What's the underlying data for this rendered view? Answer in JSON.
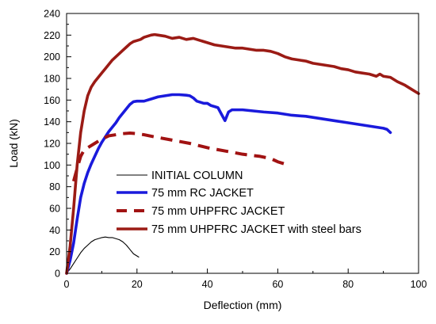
{
  "chart_data": {
    "type": "line",
    "xlabel": "Deflection (mm)",
    "ylabel": "Load (kN)",
    "xlim": [
      0,
      100
    ],
    "ylim": [
      0,
      240
    ],
    "xticks": [
      0,
      20,
      40,
      60,
      80,
      100
    ],
    "yticks": [
      0,
      20,
      40,
      60,
      80,
      100,
      120,
      140,
      160,
      180,
      200,
      220,
      240
    ],
    "grid": false,
    "legend_position": "bottom-left inside",
    "series": [
      {
        "name": "INITIAL COLUMN",
        "color": "#000000",
        "style": "solid-thin",
        "points": [
          [
            0,
            0
          ],
          [
            1,
            4
          ],
          [
            2,
            9
          ],
          [
            3,
            14
          ],
          [
            4,
            19
          ],
          [
            5,
            23
          ],
          [
            6,
            26
          ],
          [
            7,
            29
          ],
          [
            8,
            31
          ],
          [
            9,
            32
          ],
          [
            10,
            33
          ],
          [
            11,
            33.5
          ],
          [
            12,
            33
          ],
          [
            13,
            33
          ],
          [
            14,
            32
          ],
          [
            15,
            31
          ],
          [
            16,
            29
          ],
          [
            17,
            26
          ],
          [
            18,
            22
          ],
          [
            19,
            18
          ],
          [
            20,
            16
          ],
          [
            20.5,
            15
          ]
        ]
      },
      {
        "name": "75 mm RC JACKET",
        "color": "#1a1adc",
        "style": "solid-thick",
        "points": [
          [
            0,
            0
          ],
          [
            1,
            12
          ],
          [
            2,
            28
          ],
          [
            3,
            50
          ],
          [
            4,
            70
          ],
          [
            5,
            83
          ],
          [
            6,
            93
          ],
          [
            7,
            101
          ],
          [
            8,
            108
          ],
          [
            9,
            115
          ],
          [
            10,
            121
          ],
          [
            11,
            126
          ],
          [
            12,
            131
          ],
          [
            13,
            135
          ],
          [
            14,
            139
          ],
          [
            15,
            144
          ],
          [
            16,
            148
          ],
          [
            17,
            152
          ],
          [
            18,
            156
          ],
          [
            19,
            158.5
          ],
          [
            20,
            159
          ],
          [
            22,
            159
          ],
          [
            24,
            161
          ],
          [
            26,
            163
          ],
          [
            28,
            164
          ],
          [
            30,
            165
          ],
          [
            32,
            165
          ],
          [
            34,
            164.5
          ],
          [
            35,
            164
          ],
          [
            36,
            162
          ],
          [
            37,
            159
          ],
          [
            38,
            158
          ],
          [
            39,
            157
          ],
          [
            40,
            157
          ],
          [
            41,
            155
          ],
          [
            42,
            154
          ],
          [
            43,
            153
          ],
          [
            44,
            147
          ],
          [
            45,
            141
          ],
          [
            46,
            149
          ],
          [
            47,
            151
          ],
          [
            50,
            151
          ],
          [
            53,
            150
          ],
          [
            56,
            149
          ],
          [
            60,
            148
          ],
          [
            64,
            146
          ],
          [
            68,
            145
          ],
          [
            72,
            143
          ],
          [
            76,
            141
          ],
          [
            80,
            139
          ],
          [
            84,
            137
          ],
          [
            88,
            135
          ],
          [
            90,
            134
          ],
          [
            91,
            133
          ],
          [
            92,
            130
          ]
        ]
      },
      {
        "name": "75 mm UHPFRC JACKET",
        "color": "#a11212",
        "style": "dashed-thick",
        "points": [
          [
            2,
            85
          ],
          [
            3,
            97
          ],
          [
            4,
            108
          ],
          [
            5,
            114
          ],
          [
            6,
            116
          ],
          [
            8,
            120
          ],
          [
            10,
            124
          ],
          [
            12,
            127
          ],
          [
            14,
            128
          ],
          [
            16,
            129
          ],
          [
            18,
            129.5
          ],
          [
            20,
            129
          ],
          [
            22,
            128
          ],
          [
            25,
            126
          ],
          [
            30,
            123
          ],
          [
            35,
            120
          ],
          [
            40,
            116
          ],
          [
            45,
            113
          ],
          [
            50,
            110
          ],
          [
            55,
            108
          ],
          [
            58,
            106
          ],
          [
            60,
            103
          ],
          [
            62,
            101
          ]
        ]
      },
      {
        "name": "75 mm UHPFRC JACKET with steel bars",
        "color": "#9b1b15",
        "style": "solid-thick",
        "points": [
          [
            0,
            0
          ],
          [
            1,
            25
          ],
          [
            2,
            60
          ],
          [
            3,
            100
          ],
          [
            4,
            130
          ],
          [
            5,
            150
          ],
          [
            6,
            164
          ],
          [
            7,
            172
          ],
          [
            8,
            177
          ],
          [
            9,
            181
          ],
          [
            10,
            185
          ],
          [
            11,
            189
          ],
          [
            12,
            193
          ],
          [
            13,
            197
          ],
          [
            14,
            200
          ],
          [
            15,
            203
          ],
          [
            16,
            206
          ],
          [
            17,
            209
          ],
          [
            18,
            212
          ],
          [
            19,
            214
          ],
          [
            20,
            215
          ],
          [
            21,
            216
          ],
          [
            22,
            218
          ],
          [
            23,
            219
          ],
          [
            24,
            220
          ],
          [
            25,
            220.5
          ],
          [
            26,
            220
          ],
          [
            28,
            219
          ],
          [
            30,
            217
          ],
          [
            32,
            218
          ],
          [
            34,
            216
          ],
          [
            36,
            217
          ],
          [
            38,
            215
          ],
          [
            40,
            213
          ],
          [
            42,
            211
          ],
          [
            44,
            210
          ],
          [
            46,
            209
          ],
          [
            48,
            208
          ],
          [
            50,
            208
          ],
          [
            52,
            207
          ],
          [
            54,
            206
          ],
          [
            56,
            206
          ],
          [
            58,
            205
          ],
          [
            60,
            203
          ],
          [
            62,
            200
          ],
          [
            64,
            198
          ],
          [
            66,
            197
          ],
          [
            68,
            196
          ],
          [
            70,
            194
          ],
          [
            72,
            193
          ],
          [
            74,
            192
          ],
          [
            76,
            191
          ],
          [
            78,
            189
          ],
          [
            80,
            188
          ],
          [
            82,
            186
          ],
          [
            84,
            185
          ],
          [
            86,
            184
          ],
          [
            88,
            182
          ],
          [
            89,
            184
          ],
          [
            90,
            182
          ],
          [
            92,
            181
          ],
          [
            94,
            177
          ],
          [
            96,
            174
          ],
          [
            98,
            170
          ],
          [
            100,
            166
          ]
        ]
      }
    ]
  }
}
